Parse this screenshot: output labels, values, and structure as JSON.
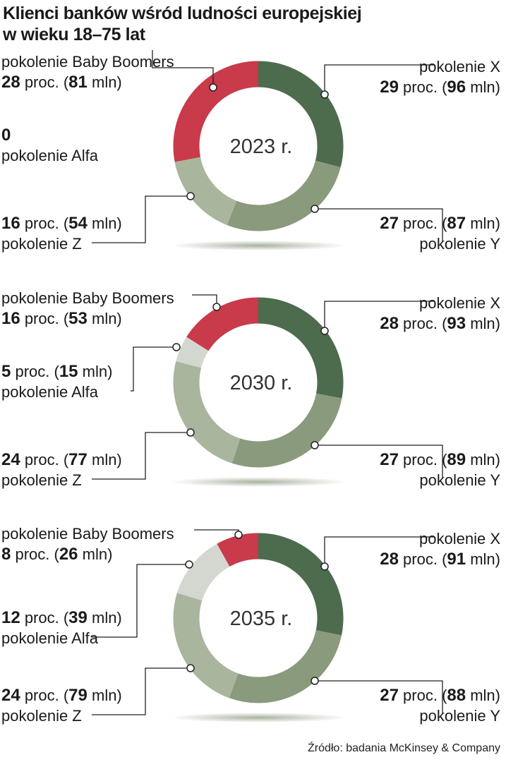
{
  "title_lines": [
    "Klienci banków wśród ludności europejskiej",
    "w wieku 18–75 lat"
  ],
  "source": "Źródło: badania McKinsey & Company",
  "colors": {
    "pokolenie X": "#4d6b4d",
    "pokolenie Y": "#8a9a7c",
    "pokolenie Z": "#a9b59c",
    "pokolenie Alfa": "#d4d6d0",
    "pokolenie Baby Boomers": "#c93a4a"
  },
  "chart_data": [
    {
      "type": "pie",
      "center_label": "2023 r.",
      "series": [
        {
          "name": "pokolenie X",
          "pct": 29,
          "mln": 96
        },
        {
          "name": "pokolenie Y",
          "pct": 27,
          "mln": 87
        },
        {
          "name": "pokolenie Z",
          "pct": 16,
          "mln": 54
        },
        {
          "name": "pokolenie Alfa",
          "pct": 0,
          "mln": null
        },
        {
          "name": "pokolenie Baby Boomers",
          "pct": 28,
          "mln": 81
        }
      ],
      "labels": {
        "x": {
          "name": "pokolenie X",
          "pct": "29",
          "mln": "96"
        },
        "y": {
          "name": "pokolenie Y",
          "pct": "27",
          "mln": "87"
        },
        "z": {
          "name": "pokolenie Z",
          "pct": "16",
          "mln": "54"
        },
        "alfa": {
          "name": "pokolenie Alfa",
          "value": "0"
        },
        "bb": {
          "name": "pokolenie Baby Boomers",
          "pct": "28",
          "mln": "81"
        }
      }
    },
    {
      "type": "pie",
      "center_label": "2030 r.",
      "series": [
        {
          "name": "pokolenie X",
          "pct": 28,
          "mln": 93
        },
        {
          "name": "pokolenie Y",
          "pct": 27,
          "mln": 89
        },
        {
          "name": "pokolenie Z",
          "pct": 24,
          "mln": 77
        },
        {
          "name": "pokolenie Alfa",
          "pct": 5,
          "mln": 15
        },
        {
          "name": "pokolenie Baby Boomers",
          "pct": 16,
          "mln": 53
        }
      ],
      "labels": {
        "x": {
          "name": "pokolenie X",
          "pct": "28",
          "mln": "93"
        },
        "y": {
          "name": "pokolenie Y",
          "pct": "27",
          "mln": "89"
        },
        "z": {
          "name": "pokolenie Z",
          "pct": "24",
          "mln": "77"
        },
        "alfa": {
          "name": "pokolenie Alfa",
          "pct": "5",
          "mln": "15"
        },
        "bb": {
          "name": "pokolenie Baby Boomers",
          "pct": "16",
          "mln": "53"
        }
      }
    },
    {
      "type": "pie",
      "center_label": "2035 r.",
      "series": [
        {
          "name": "pokolenie X",
          "pct": 28,
          "mln": 91
        },
        {
          "name": "pokolenie Y",
          "pct": 27,
          "mln": 88
        },
        {
          "name": "pokolenie Z",
          "pct": 24,
          "mln": 79
        },
        {
          "name": "pokolenie Alfa",
          "pct": 12,
          "mln": 39
        },
        {
          "name": "pokolenie Baby Boomers",
          "pct": 8,
          "mln": 26
        }
      ],
      "labels": {
        "x": {
          "name": "pokolenie X",
          "pct": "28",
          "mln": "91"
        },
        "y": {
          "name": "pokolenie Y",
          "pct": "27",
          "mln": "88"
        },
        "z": {
          "name": "pokolenie Z",
          "pct": "24",
          "mln": "79"
        },
        "alfa": {
          "name": "pokolenie Alfa",
          "pct": "12",
          "mln": "39"
        },
        "bb": {
          "name": "pokolenie Baby Boomers",
          "pct": "8",
          "mln": "26"
        }
      }
    }
  ]
}
